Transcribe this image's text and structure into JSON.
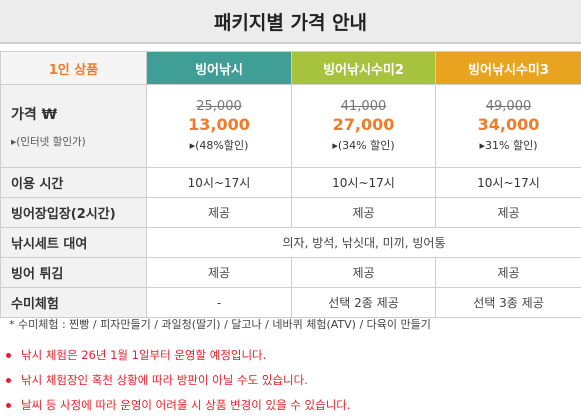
{
  "title": "패키지별 가격 안내",
  "header": {
    "corner": "1인 상품",
    "columns": [
      "빙어낚시",
      "빙어낚시수미2",
      "빙어낚시수미3"
    ],
    "column_colors": [
      "#3f9e96",
      "#a7c23c",
      "#e8a320"
    ]
  },
  "price": {
    "label": "가격 ₩",
    "sublabel": "▸(인터넷 할인가)",
    "cells": [
      {
        "original": "25,000",
        "sale": "13,000",
        "discount": "▸(48%할인)"
      },
      {
        "original": "41,000",
        "sale": "27,000",
        "discount": "▸(34% 할인)"
      },
      {
        "original": "49,000",
        "sale": "34,000",
        "discount": "▸31% 할인)"
      }
    ]
  },
  "rows": {
    "usage_time": {
      "label": "이용 시간",
      "values": [
        "10시~17시",
        "10시~17시",
        "10시~17시"
      ]
    },
    "entry": {
      "label": "빙어장입장(2시간)",
      "values": [
        "제공",
        "제공",
        "제공"
      ]
    },
    "rental": {
      "label": "낚시세트 대여",
      "value": "의자, 방석, 낚싯대, 미끼, 빙어통"
    },
    "fry": {
      "label": "빙어 튀김",
      "values": [
        "제공",
        "제공",
        "제공"
      ]
    },
    "experience": {
      "label": "수미체험",
      "values": [
        "-",
        "선택 2종 제공",
        "선택 3종 제공"
      ]
    }
  },
  "footnote": "* 수미체험 :  찐빵 /  피자만들기 / 과일청(딸기) / 달고나 / 네바퀴 체험(ATV) / 다육이 만들기",
  "notices": [
    "낚시 체험은 26년 1월 1일부터 운영할 예정입니다.",
    "낚시 체험장인 혹천 상황에 따라 방판이 아닐 수도 있습니다.",
    "날씨 등 사정에 따라 운영이 어려울 시 상품 변경이 있을 수 있습니다."
  ]
}
